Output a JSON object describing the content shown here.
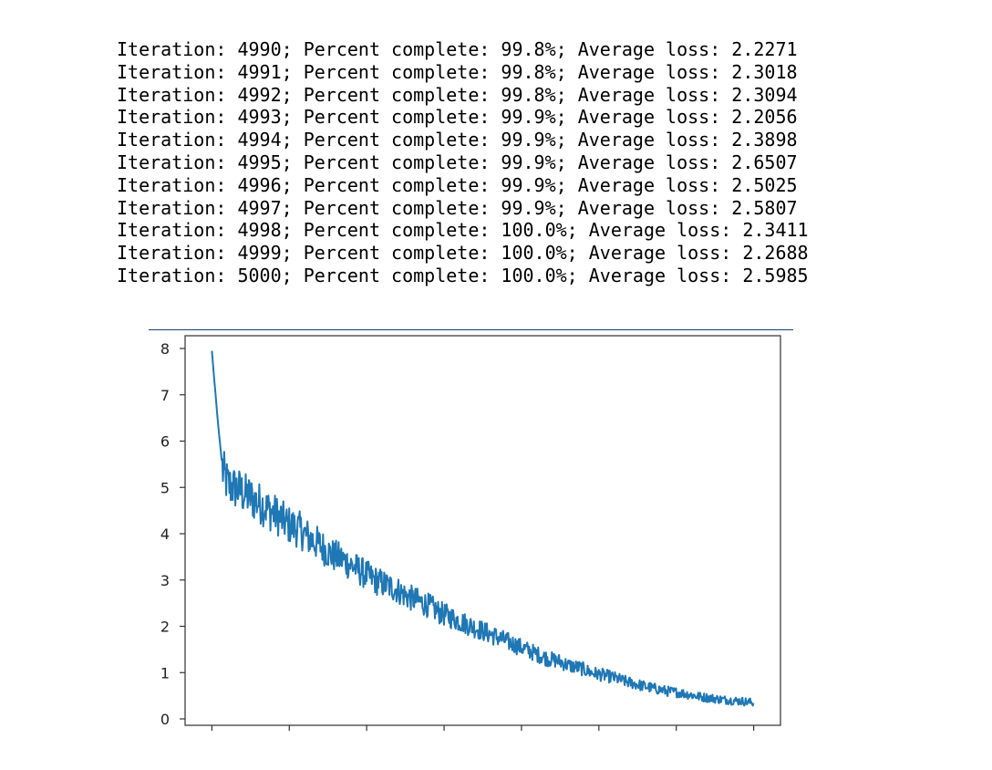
{
  "log": {
    "lines": [
      "Iteration: 4990; Percent complete: 99.8%; Average loss: 2.2271",
      "Iteration: 4991; Percent complete: 99.8%; Average loss: 2.3018",
      "Iteration: 4992; Percent complete: 99.8%; Average loss: 2.3094",
      "Iteration: 4993; Percent complete: 99.9%; Average loss: 2.2056",
      "Iteration: 4994; Percent complete: 99.9%; Average loss: 2.3898",
      "Iteration: 4995; Percent complete: 99.9%; Average loss: 2.6507",
      "Iteration: 4996; Percent complete: 99.9%; Average loss: 2.5025",
      "Iteration: 4997; Percent complete: 99.9%; Average loss: 2.5807",
      "Iteration: 4998; Percent complete: 100.0%; Average loss: 2.3411",
      "Iteration: 4999; Percent complete: 100.0%; Average loss: 2.2688",
      "Iteration: 5000; Percent complete: 100.0%; Average loss: 2.5985"
    ]
  },
  "chart_data": {
    "type": "line",
    "title": "",
    "xlabel": "",
    "ylabel": "",
    "grid": false,
    "xlim": [
      0,
      5000
    ],
    "ylim": [
      0,
      8
    ],
    "x_tick_count": 8,
    "x_tick_labels": [],
    "y_ticks": [
      0,
      1,
      2,
      3,
      4,
      5,
      6,
      7,
      8
    ],
    "y_tick_labels": [
      "0",
      "1",
      "2",
      "3",
      "4",
      "5",
      "6",
      "7",
      "8"
    ],
    "series": [
      {
        "color": "#1f77b4",
        "x": [
          0,
          50,
          100,
          150,
          200,
          250,
          300,
          350,
          400,
          450,
          500,
          600,
          700,
          800,
          900,
          1000,
          1100,
          1200,
          1300,
          1400,
          1500,
          1600,
          1700,
          1800,
          1900,
          2000,
          2100,
          2200,
          2300,
          2400,
          2500,
          2600,
          2700,
          2800,
          2900,
          3000,
          3100,
          3200,
          3300,
          3400,
          3500,
          3600,
          3700,
          3800,
          3900,
          4000,
          4100,
          4200,
          4300,
          4400,
          4500,
          4600,
          4700,
          4800,
          4900,
          5000
        ],
        "y": [
          7.95,
          6.55,
          5.35,
          5.05,
          5.0,
          4.95,
          4.85,
          4.8,
          4.7,
          4.65,
          4.55,
          4.4,
          4.2,
          4.1,
          3.9,
          3.75,
          3.55,
          3.45,
          3.3,
          3.15,
          3.0,
          2.9,
          2.8,
          2.65,
          2.55,
          2.45,
          2.3,
          2.2,
          2.1,
          2.0,
          1.9,
          1.8,
          1.7,
          1.6,
          1.5,
          1.4,
          1.3,
          1.25,
          1.15,
          1.1,
          1.0,
          0.95,
          0.9,
          0.82,
          0.76,
          0.7,
          0.65,
          0.6,
          0.57,
          0.53,
          0.48,
          0.45,
          0.42,
          0.4,
          0.38,
          0.35
        ]
      }
    ]
  }
}
